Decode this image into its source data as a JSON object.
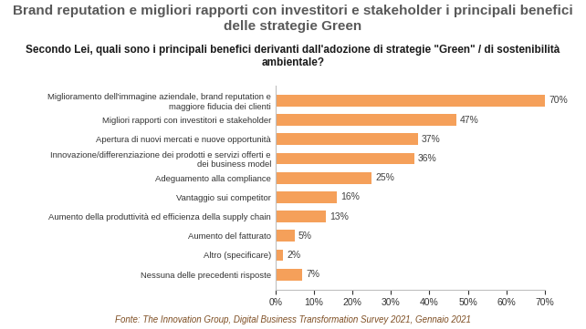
{
  "chart_data": {
    "type": "bar",
    "orientation": "horizontal",
    "title": "Brand reputation e migliori rapporti con investitori e stakeholder i principali benefici delle strategie Green",
    "subtitle": "Secondo Lei, quali sono i principali benefici derivanti dall'adozione di strategie \"Green\" / di sostenibilità ambientale?",
    "source": "Fonte: The Innovation Group, Digital Business Transformation Survey 2021, Gennaio 2021",
    "categories": [
      "Miglioramento dell'immagine aziendale, brand reputation e maggiore fiducia dei clienti",
      "Migliori rapporti con investitori e stakeholder",
      "Apertura di nuovi mercati e nuove opportunità",
      "Innovazione/differenziazione dei prodotti e servizi offerti e dei business model",
      "Adeguamento alla compliance",
      "Vantaggio sui competitor",
      "Aumento della produttività ed efficienza della supply chain",
      "Aumento del fatturato",
      "Altro (specificare)",
      "Nessuna delle precedenti risposte"
    ],
    "values": [
      70,
      47,
      37,
      36,
      25,
      16,
      13,
      5,
      2,
      7
    ],
    "value_labels": [
      "70%",
      "47%",
      "37%",
      "36%",
      "25%",
      "16%",
      "13%",
      "5%",
      "2%",
      "7%"
    ],
    "data_labels": true,
    "color": "#F5A05A",
    "xlim": [
      0,
      70
    ],
    "xticks": [
      {
        "value": 0,
        "label": "0%"
      },
      {
        "value": 10,
        "label": "10%"
      },
      {
        "value": 20,
        "label": "20%"
      },
      {
        "value": 30,
        "label": "30%"
      },
      {
        "value": 40,
        "label": "40%"
      },
      {
        "value": 50,
        "label": "50%"
      },
      {
        "value": 60,
        "label": "60%"
      },
      {
        "value": 70,
        "label": "70%"
      }
    ],
    "grid": false
  }
}
